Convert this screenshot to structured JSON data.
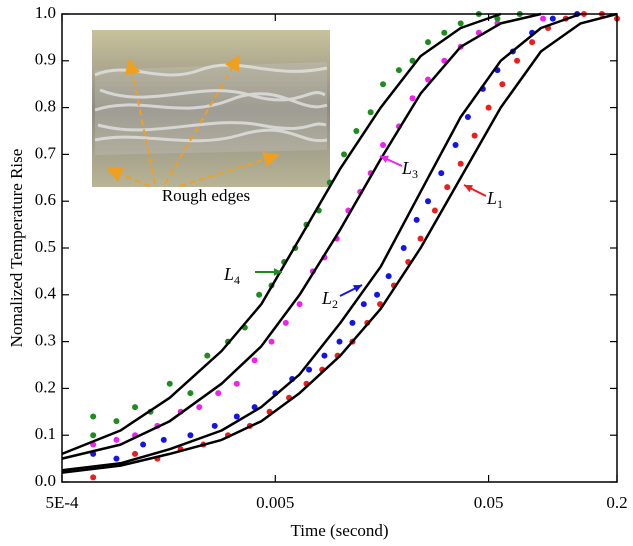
{
  "chart_data": {
    "type": "scatter",
    "xlabel": "Time (second)",
    "ylabel": "Nomalized Temperature Rise",
    "xscale": "log",
    "xlim": [
      0.0005,
      0.2
    ],
    "ylim": [
      0,
      1
    ],
    "xticks": [
      {
        "value": 0.0005,
        "label": "5E-4"
      },
      0.005,
      0.05,
      0.2
    ],
    "yticks": [
      {
        "value": 0,
        "label": "0.0"
      },
      0.1,
      0.2,
      0.3,
      0.4,
      0.5,
      0.6,
      0.7,
      0.8,
      0.9,
      {
        "value": 1,
        "label": "1.0"
      }
    ],
    "series": [
      {
        "color": "#ee1c1c",
        "x": [
          0.0007,
          0.0011,
          0.0014,
          0.0018,
          0.0023,
          0.003,
          0.0038,
          0.0047,
          0.0058,
          0.007,
          0.0083,
          0.0098,
          0.0115,
          0.0135,
          0.0155,
          0.018,
          0.021,
          0.024,
          0.028,
          0.032,
          0.037,
          0.043,
          0.05,
          0.058,
          0.068,
          0.08,
          0.095,
          0.115,
          0.14,
          0.17,
          0.2
        ],
        "values": [
          0.01,
          0.06,
          0.05,
          0.07,
          0.08,
          0.1,
          0.12,
          0.15,
          0.18,
          0.21,
          0.24,
          0.27,
          0.3,
          0.34,
          0.38,
          0.42,
          0.47,
          0.52,
          0.58,
          0.63,
          0.68,
          0.74,
          0.8,
          0.85,
          0.9,
          0.94,
          0.97,
          0.99,
          1,
          1,
          0.99
        ]
      },
      {
        "color": "#1414e6",
        "x": [
          0.0007,
          0.0009,
          0.0012,
          0.0015,
          0.002,
          0.0026,
          0.0033,
          0.004,
          0.005,
          0.006,
          0.0072,
          0.0085,
          0.01,
          0.0115,
          0.013,
          0.015,
          0.017,
          0.02,
          0.023,
          0.026,
          0.03,
          0.035,
          0.04,
          0.047,
          0.055,
          0.065,
          0.08,
          0.1,
          0.13
        ],
        "values": [
          0.06,
          0.05,
          0.08,
          0.09,
          0.1,
          0.12,
          0.14,
          0.16,
          0.19,
          0.22,
          0.24,
          0.27,
          0.3,
          0.34,
          0.38,
          0.4,
          0.44,
          0.5,
          0.56,
          0.6,
          0.66,
          0.72,
          0.78,
          0.84,
          0.88,
          0.92,
          0.96,
          0.99,
          1
        ]
      },
      {
        "color": "#ee22ee",
        "x": [
          0.0007,
          0.0009,
          0.0011,
          0.0014,
          0.0018,
          0.0022,
          0.0027,
          0.0033,
          0.004,
          0.0048,
          0.0056,
          0.0065,
          0.0075,
          0.0085,
          0.0097,
          0.011,
          0.0125,
          0.014,
          0.016,
          0.019,
          0.022,
          0.026,
          0.031,
          0.037,
          0.045,
          0.055,
          0.07,
          0.09
        ],
        "values": [
          0.08,
          0.09,
          0.1,
          0.12,
          0.15,
          0.16,
          0.19,
          0.21,
          0.26,
          0.3,
          0.34,
          0.38,
          0.45,
          0.48,
          0.52,
          0.58,
          0.62,
          0.66,
          0.72,
          0.76,
          0.82,
          0.86,
          0.9,
          0.93,
          0.96,
          0.98,
          1,
          0.99
        ]
      },
      {
        "color": "#1e8c1e",
        "x": [
          0.0007,
          0.0007,
          0.0009,
          0.0011,
          0.0013,
          0.0016,
          0.002,
          0.0024,
          0.003,
          0.0036,
          0.0042,
          0.0048,
          0.0055,
          0.0062,
          0.007,
          0.008,
          0.009,
          0.0105,
          0.012,
          0.014,
          0.016,
          0.019,
          0.022,
          0.026,
          0.031,
          0.037,
          0.045,
          0.055,
          0.07
        ],
        "values": [
          0.14,
          0.1,
          0.13,
          0.16,
          0.15,
          0.21,
          0.19,
          0.27,
          0.3,
          0.33,
          0.4,
          0.42,
          0.47,
          0.5,
          0.55,
          0.58,
          0.64,
          0.7,
          0.75,
          0.79,
          0.85,
          0.88,
          0.9,
          0.94,
          0.96,
          0.98,
          1,
          0.99,
          1
        ]
      }
    ],
    "fits": [
      {
        "color": "#000000",
        "x": [
          0.0005,
          0.00094,
          0.0016,
          0.0028,
          0.0043,
          0.0065,
          0.0101,
          0.0156,
          0.024,
          0.037,
          0.057,
          0.088,
          0.135,
          0.2
        ],
        "values": [
          0.02,
          0.035,
          0.06,
          0.09,
          0.13,
          0.19,
          0.27,
          0.37,
          0.5,
          0.65,
          0.8,
          0.92,
          0.98,
          1
        ]
      },
      {
        "color": "#000000",
        "x": [
          0.0005,
          0.00094,
          0.0016,
          0.0028,
          0.0043,
          0.0065,
          0.0101,
          0.0156,
          0.024,
          0.037,
          0.057,
          0.088,
          0.135
        ],
        "values": [
          0.025,
          0.04,
          0.07,
          0.11,
          0.16,
          0.23,
          0.34,
          0.46,
          0.62,
          0.78,
          0.9,
          0.97,
          1
        ]
      },
      {
        "color": "#000000",
        "x": [
          0.0005,
          0.00094,
          0.0016,
          0.0028,
          0.0043,
          0.0065,
          0.0101,
          0.0156,
          0.024,
          0.037,
          0.057,
          0.088
        ],
        "values": [
          0.05,
          0.08,
          0.13,
          0.21,
          0.29,
          0.4,
          0.54,
          0.69,
          0.83,
          0.93,
          0.98,
          1
        ]
      },
      {
        "color": "#000000",
        "x": [
          0.0005,
          0.00094,
          0.0016,
          0.0028,
          0.0043,
          0.0065,
          0.0101,
          0.0156,
          0.024,
          0.037,
          0.057
        ],
        "values": [
          0.06,
          0.11,
          0.18,
          0.28,
          0.38,
          0.52,
          0.67,
          0.8,
          0.91,
          0.97,
          1
        ]
      }
    ],
    "annotations": [
      {
        "text": "L",
        "subscript": "1",
        "color": "#ee1c1c"
      },
      {
        "text": "L",
        "subscript": "2",
        "color": "#1414e6"
      },
      {
        "text": "L",
        "subscript": "3",
        "color": "#ee22ee"
      },
      {
        "text": "L",
        "subscript": "4",
        "color": "#1e8c1e"
      }
    ],
    "inset_label": "Rough edges"
  }
}
